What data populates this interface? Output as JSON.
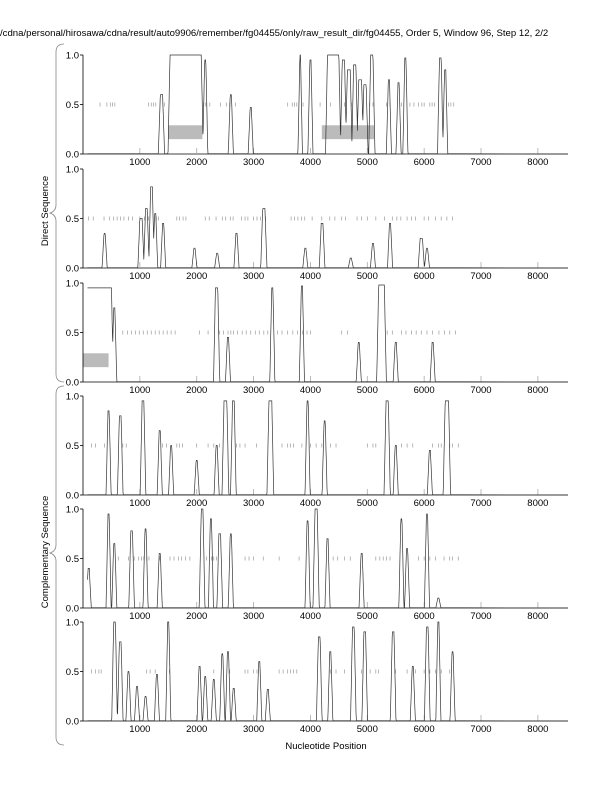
{
  "chart_data": {
    "type": "line",
    "title": "/cdna/personal/hirosawa/cdna/result/auto9906/remember/fg04455/only/raw_result_dir/fg04455, Order 5, Window 96, Step 12, 2/2",
    "xlabel": "Nucleotide Position",
    "group_labels": [
      "Direct Sequence",
      "Complementary Sequence"
    ],
    "xlim": [
      0,
      8530
    ],
    "ylim": [
      0,
      1
    ],
    "xticks": [
      1000,
      2000,
      3000,
      4000,
      5000,
      6000,
      7000,
      8000
    ],
    "xtick_labels": [
      "1000",
      "2000",
      "3000",
      "4000",
      "5000",
      "6000",
      "7000",
      "8000"
    ],
    "yticks": [
      0,
      0.5,
      1
    ],
    "ytick_labels": [
      "0.0",
      "0.5",
      "1.0"
    ],
    "panels": [
      {
        "name": "direct-frame-1",
        "peaks": [
          [
            1360,
            1400,
            0.6
          ],
          [
            1530,
            2080,
            1.0
          ],
          [
            2140,
            2160,
            0.95
          ],
          [
            2590,
            2610,
            0.6
          ],
          [
            2940,
            2960,
            0.47
          ],
          [
            3815,
            3825,
            1.0
          ],
          [
            3990,
            4010,
            0.95
          ],
          [
            4300,
            4500,
            1.0
          ],
          [
            4560,
            4600,
            0.95
          ],
          [
            4650,
            4700,
            0.85
          ],
          [
            4760,
            4800,
            0.9
          ],
          [
            4850,
            4900,
            0.75
          ],
          [
            4940,
            4980,
            0.7
          ],
          [
            5060,
            5100,
            1.0
          ],
          [
            5370,
            5390,
            0.75
          ],
          [
            5540,
            5560,
            0.72
          ],
          [
            5660,
            5680,
            0.97
          ],
          [
            6270,
            6300,
            0.97
          ],
          [
            6360,
            6380,
            0.85
          ]
        ],
        "ticks": [
          300,
          420,
          480,
          520,
          560,
          1150,
          1200,
          1240,
          1280,
          1430,
          2120,
          2160,
          2230,
          2420,
          2520,
          2580,
          2680,
          3600,
          3680,
          3720,
          3760,
          3870,
          4170,
          4350,
          4600,
          4720,
          5040,
          5100,
          5340,
          5400,
          5600,
          5750,
          5820,
          5900,
          5960,
          6000,
          6100,
          6140,
          6180,
          6430,
          6470,
          6520
        ],
        "regions": [
          [
            1500,
            2100
          ],
          [
            4200,
            5120
          ]
        ]
      },
      {
        "name": "direct-frame-2",
        "peaks": [
          [
            370,
            390,
            0.35
          ],
          [
            1000,
            1040,
            0.5
          ],
          [
            1100,
            1130,
            0.6
          ],
          [
            1190,
            1220,
            0.82
          ],
          [
            1260,
            1280,
            0.55
          ],
          [
            1400,
            1420,
            0.45
          ],
          [
            1950,
            1970,
            0.2
          ],
          [
            2350,
            2370,
            0.15
          ],
          [
            2690,
            2710,
            0.35
          ],
          [
            3160,
            3200,
            0.6
          ],
          [
            3900,
            3920,
            0.2
          ],
          [
            4190,
            4220,
            0.45
          ],
          [
            4700,
            4720,
            0.1
          ],
          [
            5090,
            5110,
            0.25
          ],
          [
            5390,
            5410,
            0.45
          ],
          [
            5930,
            5970,
            0.3
          ],
          [
            6040,
            6060,
            0.2
          ]
        ],
        "ticks": [
          100,
          180,
          370,
          470,
          540,
          600,
          660,
          720,
          800,
          870,
          1000,
          1080,
          1150,
          1290,
          1330,
          1650,
          1700,
          1760,
          1810,
          2150,
          2220,
          2340,
          2450,
          2510,
          2590,
          2640,
          2790,
          2850,
          2900,
          3000,
          3060,
          3120,
          3210,
          3660,
          3720,
          3780,
          3840,
          3900,
          4030,
          4200,
          4340,
          4430,
          4550,
          4620,
          4820,
          4900,
          5000,
          5150,
          5300,
          5440,
          5520,
          5590,
          5700,
          5780,
          5850,
          6000,
          6080,
          6200,
          6300,
          6400,
          6500
        ],
        "regions": []
      },
      {
        "name": "direct-frame-3",
        "peaks": [
          [
            40,
            500,
            0.95
          ],
          [
            540,
            560,
            0.75
          ],
          [
            2330,
            2370,
            0.95
          ],
          [
            2540,
            2560,
            0.45
          ],
          [
            3320,
            3340,
            0.95
          ],
          [
            3840,
            3860,
            0.97
          ],
          [
            4840,
            4860,
            0.4
          ],
          [
            5200,
            5300,
            0.98
          ],
          [
            5490,
            5510,
            0.4
          ],
          [
            6140,
            6160,
            0.4
          ]
        ],
        "ticks": [
          700,
          780,
          850,
          920,
          990,
          1060,
          1130,
          1200,
          1270,
          1340,
          1410,
          1480,
          1550,
          1620,
          2050,
          2200,
          2400,
          2470,
          2550,
          2600,
          2650,
          2720,
          2800,
          2870,
          2950,
          3030,
          3100,
          3180,
          3250,
          3420,
          3500,
          3600,
          3690,
          3770,
          3860,
          3940,
          4000,
          4550,
          4650,
          5350,
          5440,
          5600,
          5680,
          5780,
          5860,
          5950,
          6050,
          6150,
          6260,
          6360,
          6450,
          6550
        ],
        "regions": [
          [
            0,
            450
          ]
        ]
      },
      {
        "name": "complementary-frame-1",
        "peaks": [
          [
            440,
            460,
            0.85
          ],
          [
            640,
            670,
            0.8
          ],
          [
            1040,
            1070,
            0.95
          ],
          [
            1340,
            1360,
            0.65
          ],
          [
            1540,
            1560,
            0.5
          ],
          [
            1990,
            2010,
            0.35
          ],
          [
            2340,
            2360,
            0.5
          ],
          [
            2480,
            2530,
            0.95
          ],
          [
            2630,
            2660,
            0.95
          ],
          [
            3270,
            3320,
            0.95
          ],
          [
            3940,
            3960,
            0.95
          ],
          [
            4240,
            4260,
            0.75
          ],
          [
            5330,
            5370,
            0.95
          ],
          [
            5490,
            5510,
            0.5
          ],
          [
            6090,
            6110,
            0.45
          ],
          [
            6370,
            6430,
            0.95
          ]
        ],
        "ticks": [
          150,
          220,
          380,
          700,
          760,
          1400,
          1470,
          1650,
          1700,
          1750,
          2000,
          2200,
          2300,
          2400,
          2700,
          2760,
          2850,
          3050,
          3500,
          3600,
          3650,
          3700,
          3850,
          4000,
          4100,
          4200,
          4350,
          4450,
          5000,
          5100,
          5150,
          5600,
          5700,
          5800,
          6150,
          6250,
          6300,
          6450,
          6500,
          6600
        ],
        "regions": []
      },
      {
        "name": "complementary-frame-2",
        "peaks": [
          [
            90,
            110,
            0.4
          ],
          [
            440,
            460,
            0.95
          ],
          [
            540,
            560,
            0.65
          ],
          [
            840,
            870,
            0.78
          ],
          [
            1090,
            1110,
            0.8
          ],
          [
            1340,
            1360,
            0.55
          ],
          [
            2080,
            2110,
            1.0
          ],
          [
            2240,
            2260,
            0.9
          ],
          [
            2390,
            2420,
            0.75
          ],
          [
            2590,
            2610,
            0.75
          ],
          [
            3940,
            3960,
            0.88
          ],
          [
            4080,
            4120,
            1.0
          ],
          [
            4290,
            4310,
            0.7
          ],
          [
            4890,
            4910,
            0.55
          ],
          [
            5590,
            5610,
            0.9
          ],
          [
            5690,
            5710,
            0.6
          ],
          [
            6040,
            6060,
            0.95
          ],
          [
            6240,
            6260,
            0.1
          ]
        ],
        "ticks": [
          620,
          800,
          900,
          980,
          1030,
          1070,
          1120,
          1160,
          1350,
          1530,
          1600,
          1680,
          1730,
          1800,
          1880,
          2170,
          2260,
          2300,
          2350,
          2850,
          2920,
          3000,
          3170,
          3450,
          3800,
          4400,
          4480,
          4600,
          4700,
          5150,
          5220,
          5280,
          5340,
          5400,
          5900,
          6000,
          6100,
          6200,
          6350,
          6450,
          6500,
          6600
        ],
        "regions": []
      },
      {
        "name": "complementary-frame-3",
        "peaks": [
          [
            540,
            570,
            1.0
          ],
          [
            640,
            670,
            0.8
          ],
          [
            790,
            810,
            0.5
          ],
          [
            940,
            960,
            0.35
          ],
          [
            1090,
            1110,
            0.25
          ],
          [
            1290,
            1310,
            0.47
          ],
          [
            1490,
            1510,
            1.0
          ],
          [
            2040,
            2060,
            0.55
          ],
          [
            2140,
            2160,
            0.45
          ],
          [
            2290,
            2310,
            0.42
          ],
          [
            2440,
            2460,
            0.68
          ],
          [
            2540,
            2560,
            0.7
          ],
          [
            2640,
            2660,
            0.33
          ],
          [
            3090,
            3110,
            0.6
          ],
          [
            3240,
            3260,
            0.32
          ],
          [
            4140,
            4170,
            0.85
          ],
          [
            4340,
            4360,
            0.7
          ],
          [
            4740,
            4770,
            0.95
          ],
          [
            4940,
            4970,
            0.9
          ],
          [
            5440,
            5470,
            0.9
          ],
          [
            5790,
            5810,
            0.55
          ],
          [
            6040,
            6070,
            0.95
          ],
          [
            6240,
            6260,
            1.0
          ],
          [
            6490,
            6510,
            0.7
          ]
        ],
        "ticks": [
          150,
          220,
          280,
          320,
          1120,
          1180,
          1270,
          1520,
          2300,
          2580,
          2850,
          2900,
          3000,
          3060,
          3450,
          3520,
          3600,
          3650,
          3700,
          3760,
          4350,
          4450,
          4600,
          4900,
          5050,
          5150,
          5200,
          5500,
          5700,
          5850,
          6000,
          6100,
          6200,
          6300,
          6450
        ],
        "regions": []
      }
    ]
  }
}
